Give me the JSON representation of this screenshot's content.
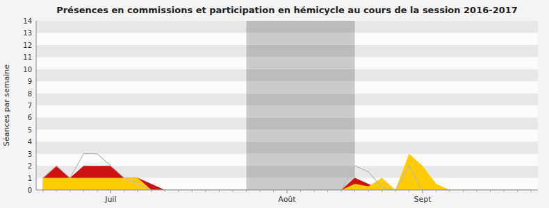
{
  "chart_data": {
    "type": "area",
    "title": "Présences en commissions et participation en hémicycle au cours de la session 2016-2017",
    "y_label": "Séances par semaine",
    "categories": [
      null,
      null,
      null,
      null,
      null,
      "Juil",
      null,
      null,
      null,
      null,
      null,
      null,
      null,
      null,
      null,
      null,
      null,
      null,
      "Août",
      null,
      null,
      null,
      null,
      null,
      null,
      null,
      null,
      null,
      "Sept",
      null,
      null,
      null,
      null,
      null,
      null,
      null,
      null
    ],
    "series": [
      {
        "type": "area",
        "color": "#cc1111",
        "values": [
          1,
          2,
          1,
          2,
          2,
          2,
          1,
          1,
          0.5,
          0,
          0,
          0,
          0,
          0,
          0,
          0,
          0,
          0,
          0,
          0,
          0,
          0,
          0,
          1,
          0.5,
          0,
          0,
          0,
          0,
          0,
          0,
          0,
          0,
          0,
          0,
          0,
          0
        ]
      },
      {
        "type": "area",
        "color": "#ffcc00",
        "values": [
          1,
          1,
          1,
          1,
          1,
          1,
          1,
          1,
          0,
          0,
          0,
          0,
          0,
          0,
          0,
          0,
          0,
          0,
          0,
          0,
          0,
          0,
          0,
          0.5,
          0.3,
          1,
          0,
          3,
          2,
          0.5,
          0,
          0,
          0,
          0,
          0,
          0,
          0
        ]
      },
      {
        "type": "line",
        "color": "#bbbbbb",
        "values": [
          1,
          2,
          1,
          3,
          3,
          2,
          1,
          0.5,
          0,
          0,
          0,
          0,
          0,
          0,
          0,
          0,
          0,
          0,
          0,
          0,
          0,
          0,
          0,
          2,
          1.5,
          0.2,
          0,
          2,
          0,
          0,
          0,
          0,
          0,
          0,
          0,
          0,
          0
        ]
      }
    ],
    "shaded_range": [
      15,
      23
    ],
    "ylim": [
      0,
      14
    ],
    "yticks": [
      0,
      1,
      2,
      3,
      4,
      5,
      6,
      7,
      8,
      9,
      10,
      11,
      12,
      13,
      14
    ],
    "grid": false
  }
}
